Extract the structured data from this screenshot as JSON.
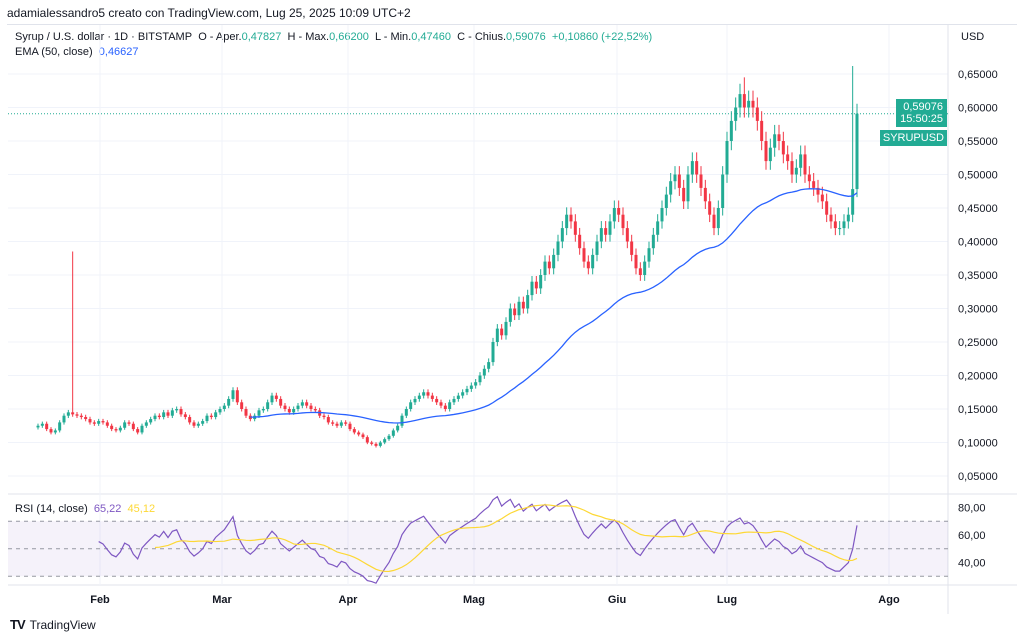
{
  "header": {
    "credit": "adamialessandro5 creato con TradingView.com, Lug 25, 2025 10:09 UTC+2"
  },
  "legend": {
    "symbol": "Syrup / U.S. dollar · 1D · BITSTAMP",
    "o_label": "O - Aper.",
    "o": "0,47827",
    "h_label": "H - Max.",
    "h": "0,66200",
    "l_label": "L - Min.",
    "l": "0,47460",
    "c_label": "C - Chius.",
    "c": "0,59076",
    "change": "+0,10860 (+22,52%)",
    "ema_label": "EMA (50, close)",
    "ema": "0,46627"
  },
  "rsi_legend": {
    "label": "RSI (14, close)",
    "rsi": "65,22",
    "sma": "45,12"
  },
  "price_tag": {
    "symbol": "SYRUPUSD",
    "price": "0,59076",
    "countdown": "15:50:25"
  },
  "currency": "USD",
  "footer": {
    "brand": "TradingView"
  },
  "colors": {
    "up": "#22ab94",
    "down": "#f23645",
    "ema": "#2962ff",
    "rsi": "#7e57c2",
    "rsi_ma": "#fdd835"
  },
  "chart_data": {
    "type": "candlestick",
    "ylim": [
      0.02,
      0.68
    ],
    "yticks": [
      "0,65000",
      "0,60000",
      "0,55000",
      "0,50000",
      "0,45000",
      "0,40000",
      "0,35000",
      "0,30000",
      "0,25000",
      "0,20000",
      "0,15000",
      "0,10000",
      "0,05000"
    ],
    "ytick_values": [
      0.65,
      0.6,
      0.55,
      0.5,
      0.45,
      0.4,
      0.35,
      0.3,
      0.25,
      0.2,
      0.15,
      0.1,
      0.05
    ],
    "rsi_ticks": [
      "80,00",
      "60,00",
      "40,00"
    ],
    "rsi_tick_values": [
      80,
      60,
      40
    ],
    "xticks": [
      "Feb",
      "Mar",
      "Apr",
      "Mag",
      "Giu",
      "Lug",
      "Ago"
    ],
    "spikes": [
      {
        "index": 8,
        "high": 0.385
      },
      {
        "index": 188,
        "high": 0.662
      },
      {
        "index": 163,
        "high": 0.645
      }
    ],
    "closes": [
      0.125,
      0.128,
      0.12,
      0.115,
      0.118,
      0.13,
      0.14,
      0.145,
      0.142,
      0.14,
      0.138,
      0.135,
      0.13,
      0.128,
      0.132,
      0.13,
      0.125,
      0.12,
      0.118,
      0.122,
      0.13,
      0.128,
      0.12,
      0.115,
      0.125,
      0.13,
      0.135,
      0.14,
      0.138,
      0.145,
      0.14,
      0.148,
      0.15,
      0.142,
      0.138,
      0.13,
      0.125,
      0.128,
      0.132,
      0.14,
      0.138,
      0.145,
      0.15,
      0.155,
      0.165,
      0.178,
      0.16,
      0.15,
      0.14,
      0.135,
      0.14,
      0.148,
      0.15,
      0.16,
      0.17,
      0.165,
      0.155,
      0.15,
      0.145,
      0.15,
      0.155,
      0.16,
      0.155,
      0.15,
      0.148,
      0.14,
      0.138,
      0.13,
      0.128,
      0.125,
      0.13,
      0.128,
      0.12,
      0.115,
      0.112,
      0.108,
      0.1,
      0.098,
      0.095,
      0.1,
      0.105,
      0.11,
      0.118,
      0.125,
      0.14,
      0.15,
      0.16,
      0.165,
      0.17,
      0.175,
      0.17,
      0.165,
      0.16,
      0.155,
      0.15,
      0.16,
      0.165,
      0.17,
      0.175,
      0.18,
      0.185,
      0.19,
      0.2,
      0.21,
      0.22,
      0.25,
      0.27,
      0.26,
      0.28,
      0.3,
      0.29,
      0.31,
      0.3,
      0.32,
      0.34,
      0.33,
      0.35,
      0.37,
      0.36,
      0.38,
      0.4,
      0.42,
      0.44,
      0.43,
      0.41,
      0.39,
      0.37,
      0.36,
      0.38,
      0.4,
      0.42,
      0.41,
      0.43,
      0.45,
      0.44,
      0.42,
      0.4,
      0.38,
      0.36,
      0.35,
      0.37,
      0.39,
      0.41,
      0.43,
      0.45,
      0.47,
      0.49,
      0.5,
      0.48,
      0.46,
      0.5,
      0.52,
      0.5,
      0.48,
      0.46,
      0.44,
      0.42,
      0.45,
      0.5,
      0.55,
      0.58,
      0.6,
      0.62,
      0.6,
      0.61,
      0.6,
      0.58,
      0.55,
      0.52,
      0.54,
      0.56,
      0.55,
      0.53,
      0.52,
      0.5,
      0.51,
      0.53,
      0.5,
      0.49,
      0.48,
      0.47,
      0.46,
      0.44,
      0.43,
      0.42,
      0.42,
      0.43,
      0.44,
      0.47827,
      0.59076
    ]
  }
}
